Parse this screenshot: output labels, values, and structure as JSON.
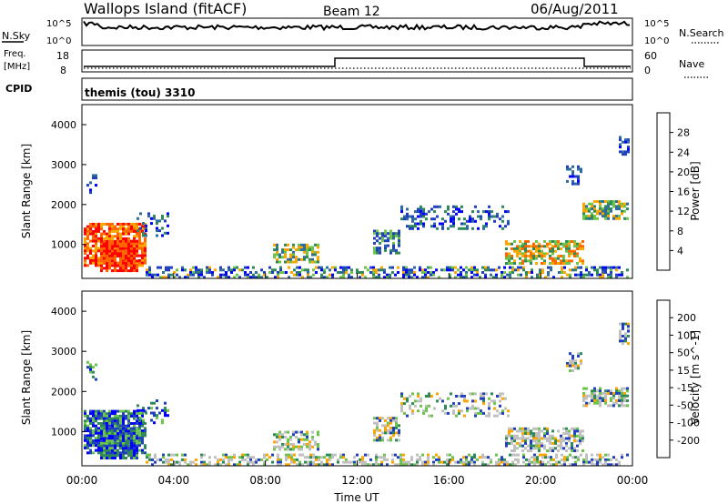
{
  "header": {
    "station": "Wallops Island (fitACF)",
    "beam": "Beam 12",
    "date": "06/Aug/2011"
  },
  "panels": {
    "nsky_label": "N.Sky",
    "nsky_ticks": [
      "10^5",
      "10^0"
    ],
    "nsearch_label": "N.Search",
    "nsearch_ticks": [
      "10^5",
      "10^0"
    ],
    "freq_label_1": "Freq.",
    "freq_label_2": "[MHz]",
    "freq_ticks": [
      "18",
      "8"
    ],
    "nave_label": "Nave",
    "nave_ticks": [
      "60",
      "0"
    ],
    "cpid_label": "CPID",
    "cpid_value": "themis (tou) 3310"
  },
  "colors": {
    "power": [
      "#0000ff",
      "#2040c0",
      "#2e6b9e",
      "#2e8b57",
      "#6cc44a",
      "#ffa500",
      "#ff6600",
      "#ff0000"
    ],
    "velocity": [
      "#ff0000",
      "#ff6600",
      "#ffa500",
      "#c0c0c0",
      "#c0c0c0",
      "#6cc44a",
      "#2e8b57",
      "#2040c0",
      "#0000ff"
    ]
  },
  "chart_data": [
    {
      "type": "heatmap",
      "name": "power",
      "ylabel": "Slant Range [km]",
      "y_ticks": [
        "1000",
        "2000",
        "3000",
        "4000"
      ],
      "colorbar_label": "Power [dB]",
      "colorbar_ticks": [
        "4",
        "8",
        "12",
        "16",
        "20",
        "24",
        "28"
      ],
      "colorbar_range": [
        0,
        30
      ]
    },
    {
      "type": "heatmap",
      "name": "velocity",
      "ylabel": "Slant Range [km]",
      "y_ticks": [
        "1000",
        "2000",
        "3000",
        "4000"
      ],
      "colorbar_label": "Velocity [m s^-1]",
      "colorbar_ticks": [
        "200",
        "100",
        "50",
        "15",
        "-15",
        "-50",
        "-100",
        "-200"
      ],
      "x_ticks": [
        "00:00",
        "04:00",
        "08:00",
        "12:00",
        "16:00",
        "20:00",
        "00:00"
      ],
      "xlabel": "Time UT"
    }
  ]
}
